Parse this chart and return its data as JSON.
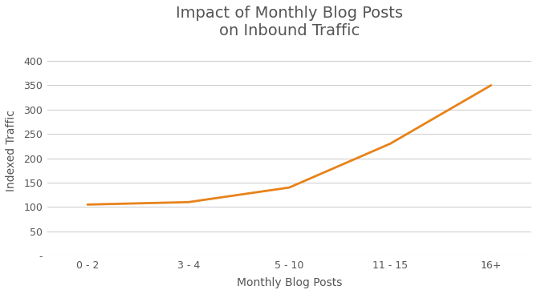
{
  "x_labels": [
    "0 - 2",
    "3 - 4",
    "5 - 10",
    "11 - 15",
    "16+"
  ],
  "y_values": [
    105,
    110,
    140,
    230,
    350
  ],
  "line_color": "#E8821A",
  "line_width": 2.0,
  "title_line1": "Impact of Monthly Blog Posts",
  "title_line2": "on Inbound Traffic",
  "xlabel": "Monthly Blog Posts",
  "ylabel": "Indexed Traffic",
  "ylim_min": 0,
  "ylim_max": 430,
  "yticks": [
    0,
    50,
    100,
    150,
    200,
    250,
    300,
    350,
    400
  ],
  "ytick_labels": [
    "-",
    "50",
    "100",
    "150",
    "200",
    "250",
    "300",
    "350",
    "400"
  ],
  "background_color": "#ffffff",
  "grid_color": "#d0d0d0",
  "title_fontsize": 14,
  "axis_label_fontsize": 10,
  "tick_fontsize": 9,
  "text_color": "#555555"
}
